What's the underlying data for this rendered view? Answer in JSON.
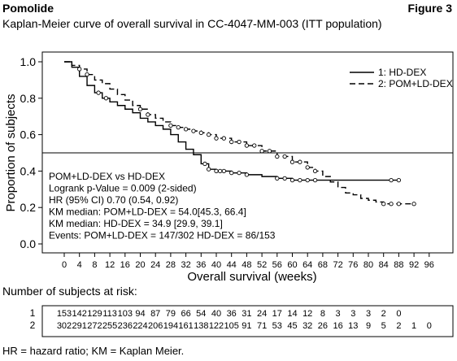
{
  "header": {
    "drug": "Pomolide",
    "figure": "Figure 3",
    "subtitle": "Kaplan-Meier curve of overall survival in CC-4047-MM-003 (ITT population)"
  },
  "chart_data": {
    "type": "line",
    "xlabel": "Overall survival (weeks)",
    "ylabel": "Proportion of subjects",
    "xlim": [
      0,
      96
    ],
    "ylim": [
      0,
      1.0
    ],
    "xticks": [
      0,
      4,
      8,
      12,
      16,
      20,
      24,
      28,
      32,
      36,
      40,
      44,
      48,
      52,
      56,
      60,
      64,
      68,
      72,
      76,
      80,
      84,
      88,
      92,
      96
    ],
    "yticks": [
      "0.0",
      "0.2",
      "0.4",
      "0.6",
      "0.8",
      "1.0"
    ],
    "reference_line_y": 0.5,
    "legend": {
      "placement": "top-right",
      "entries": [
        {
          "label": "1:  HD-DEX",
          "style": "solid"
        },
        {
          "label": "2:  POM+LD-DEX",
          "style": "dashed"
        }
      ]
    },
    "annotations": [
      "POM+LD-DEX vs HD-DEX",
      "Logrank p-Value = 0.009 (2-sided)",
      "HR (95% CI) 0.70 (0.54, 0.92)",
      "KM median: POM+LD-DEX = 54.0[45.3, 66.4]",
      "KM median: HD-DEX = 34.9 [29.9, 39.1]",
      "Events: POM+LD-DEX = 147/302 HD-DEX = 86/153"
    ],
    "series": [
      {
        "name": "1:  HD-DEX",
        "style": "solid",
        "x": [
          0,
          2,
          4,
          6,
          8,
          10,
          12,
          14,
          16,
          18,
          20,
          22,
          24,
          26,
          28,
          30,
          32,
          34,
          36,
          38,
          40,
          44,
          48,
          52,
          56,
          60,
          64,
          68,
          72,
          76,
          80,
          84,
          88
        ],
        "y": [
          1.0,
          0.97,
          0.92,
          0.87,
          0.83,
          0.8,
          0.78,
          0.76,
          0.74,
          0.72,
          0.69,
          0.67,
          0.65,
          0.63,
          0.6,
          0.56,
          0.52,
          0.49,
          0.44,
          0.41,
          0.4,
          0.39,
          0.38,
          0.37,
          0.36,
          0.35,
          0.35,
          0.35,
          0.35,
          0.35,
          0.35,
          0.35,
          0.35
        ],
        "censor_x": [
          9,
          11,
          37,
          38,
          40,
          41,
          42,
          44,
          46,
          48,
          56,
          58,
          60,
          62,
          64,
          66,
          86,
          88
        ]
      },
      {
        "name": "2:  POM+LD-DEX",
        "style": "dashed",
        "x": [
          0,
          2,
          4,
          6,
          8,
          10,
          12,
          14,
          16,
          18,
          20,
          22,
          24,
          26,
          28,
          30,
          32,
          34,
          36,
          38,
          40,
          44,
          48,
          52,
          56,
          60,
          64,
          66,
          68,
          70,
          72,
          74,
          76,
          78,
          80,
          82,
          84,
          86,
          88,
          92
        ],
        "y": [
          1.0,
          0.98,
          0.96,
          0.93,
          0.9,
          0.88,
          0.85,
          0.82,
          0.79,
          0.76,
          0.74,
          0.71,
          0.69,
          0.67,
          0.65,
          0.64,
          0.63,
          0.62,
          0.61,
          0.6,
          0.58,
          0.56,
          0.54,
          0.51,
          0.48,
          0.45,
          0.42,
          0.4,
          0.37,
          0.34,
          0.31,
          0.28,
          0.27,
          0.25,
          0.24,
          0.23,
          0.22,
          0.22,
          0.22,
          0.22
        ],
        "censor_x": [
          4,
          6,
          20,
          22,
          28,
          30,
          32,
          34,
          36,
          38,
          40,
          42,
          44,
          46,
          48,
          50,
          52,
          54,
          56,
          58,
          60,
          62,
          64,
          66,
          84,
          86,
          88,
          92
        ]
      }
    ]
  },
  "risk_table": {
    "title": "Number of subjects at risk:",
    "rows": [
      {
        "label": "1",
        "values": [
          "153",
          "142",
          "129",
          "113",
          "103",
          "94",
          "87",
          "79",
          "66",
          "54",
          "40",
          "36",
          "31",
          "24",
          "17",
          "14",
          "12",
          "8",
          "3",
          "3",
          "3",
          "2",
          "0",
          "",
          ""
        ]
      },
      {
        "label": "2",
        "values": [
          "302",
          "291",
          "272",
          "255",
          "236",
          "224",
          "206",
          "194",
          "161",
          "138",
          "122",
          "105",
          "91",
          "71",
          "53",
          "45",
          "32",
          "26",
          "16",
          "13",
          "9",
          "5",
          "2",
          "1",
          "0"
        ]
      }
    ]
  },
  "footnote": "HR = hazard ratio; KM = Kaplan Meier."
}
